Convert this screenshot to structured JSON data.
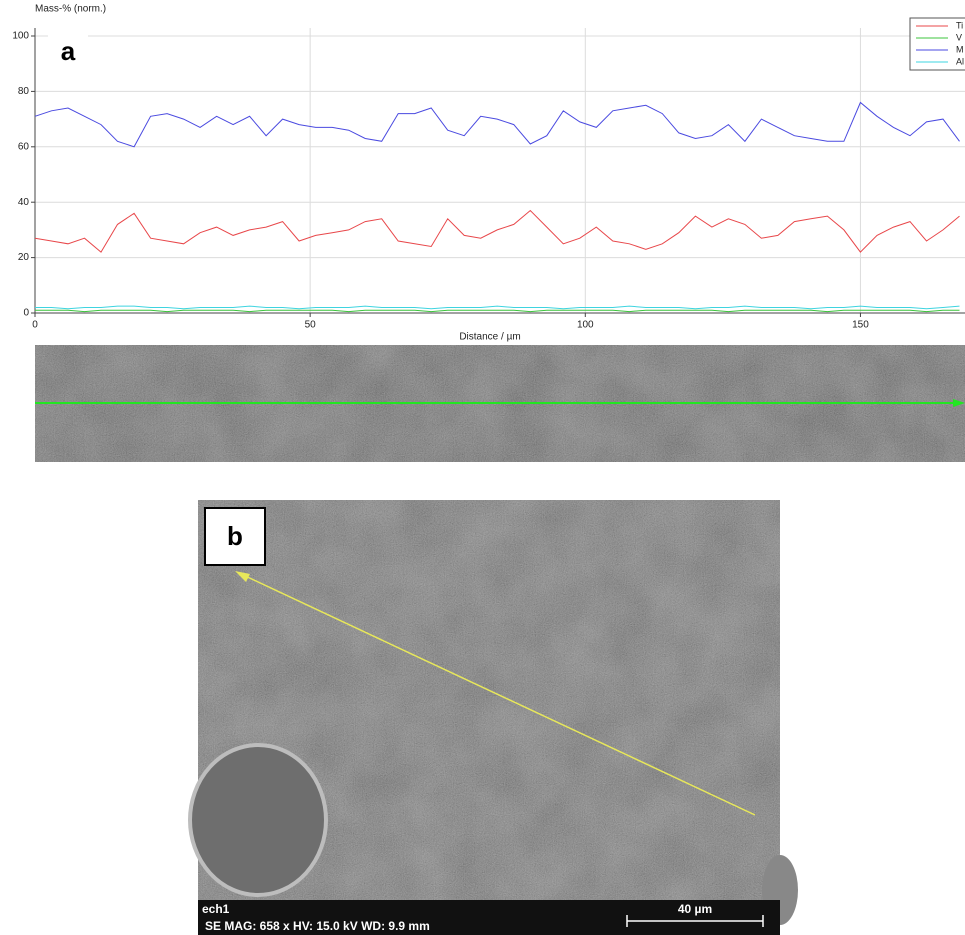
{
  "chart_data": {
    "type": "line",
    "ylabel": "Mass-% (norm.)",
    "xlabel": "Distance / µm",
    "x": [
      0,
      3,
      6,
      9,
      12,
      15,
      18,
      21,
      24,
      27,
      30,
      33,
      36,
      39,
      42,
      45,
      48,
      51,
      54,
      57,
      60,
      63,
      66,
      69,
      72,
      75,
      78,
      81,
      84,
      87,
      90,
      93,
      96,
      99,
      102,
      105,
      108,
      111,
      114,
      117,
      120,
      123,
      126,
      129,
      132,
      135,
      138,
      141,
      144,
      147,
      150,
      153,
      156,
      159,
      162,
      165,
      168
    ],
    "series": [
      {
        "name": "Ti",
        "color": "#e8474a",
        "values": [
          27,
          26,
          25,
          27,
          22,
          32,
          36,
          27,
          26,
          25,
          29,
          31,
          28,
          30,
          31,
          33,
          26,
          28,
          29,
          30,
          33,
          34,
          26,
          25,
          24,
          34,
          28,
          27,
          30,
          32,
          37,
          31,
          25,
          27,
          31,
          26,
          25,
          23,
          25,
          29,
          35,
          31,
          34,
          32,
          27,
          28,
          33,
          34,
          35,
          30,
          22,
          28,
          31,
          33,
          26,
          30,
          35
        ]
      },
      {
        "name": "V",
        "color": "#3cc43c",
        "values": [
          1,
          1,
          1,
          0.5,
          1,
          1,
          1,
          1,
          0.5,
          1,
          1,
          1,
          1,
          0.5,
          1,
          1,
          1,
          1,
          1,
          0.5,
          1,
          1,
          1,
          1,
          0.5,
          1,
          1,
          1,
          1,
          1,
          0.5,
          1,
          1,
          1,
          1,
          1,
          0.5,
          1,
          1,
          1,
          1,
          1,
          0.5,
          1,
          1,
          1,
          1,
          1,
          0.5,
          1,
          1,
          1,
          1,
          1,
          0.5,
          1,
          1
        ]
      },
      {
        "name": "M",
        "color": "#4a4ae0",
        "values": [
          71,
          73,
          74,
          71,
          68,
          62,
          60,
          71,
          72,
          70,
          67,
          71,
          68,
          71,
          64,
          70,
          68,
          67,
          67,
          66,
          63,
          62,
          72,
          72,
          74,
          66,
          64,
          71,
          70,
          68,
          61,
          64,
          73,
          69,
          67,
          73,
          74,
          75,
          72,
          65,
          63,
          64,
          68,
          62,
          70,
          67,
          64,
          63,
          62,
          62,
          76,
          71,
          67,
          64,
          69,
          70,
          62
        ]
      },
      {
        "name": "Al",
        "color": "#3ed4e0",
        "values": [
          2,
          2,
          1.5,
          2,
          2,
          2.5,
          2.5,
          2,
          2,
          1.5,
          2,
          2,
          2,
          2.5,
          2,
          2,
          1.5,
          2,
          2,
          2,
          2.5,
          2,
          2,
          2,
          1.5,
          2,
          2,
          2,
          2.5,
          2,
          2,
          2,
          1.5,
          2,
          2,
          2,
          2.5,
          2,
          2,
          2,
          1.5,
          2,
          2,
          2.5,
          2,
          2,
          2,
          1.5,
          2,
          2,
          2.5,
          2,
          2,
          2,
          1.5,
          2,
          2.5
        ]
      }
    ],
    "xlim": [
      0,
      169
    ],
    "ylim": [
      0,
      100
    ],
    "xticks": [
      0,
      50,
      100,
      150
    ],
    "yticks": [
      0,
      20,
      40,
      60,
      80,
      100
    ],
    "grid": true,
    "legend": "top-right"
  },
  "panel_labels": [
    "a",
    "b"
  ],
  "sem": {
    "name": "ech1",
    "info": "SE  MAG: 658 x  HV: 15.0 kV  WD: 9.9 mm",
    "scale": "40 µm"
  }
}
